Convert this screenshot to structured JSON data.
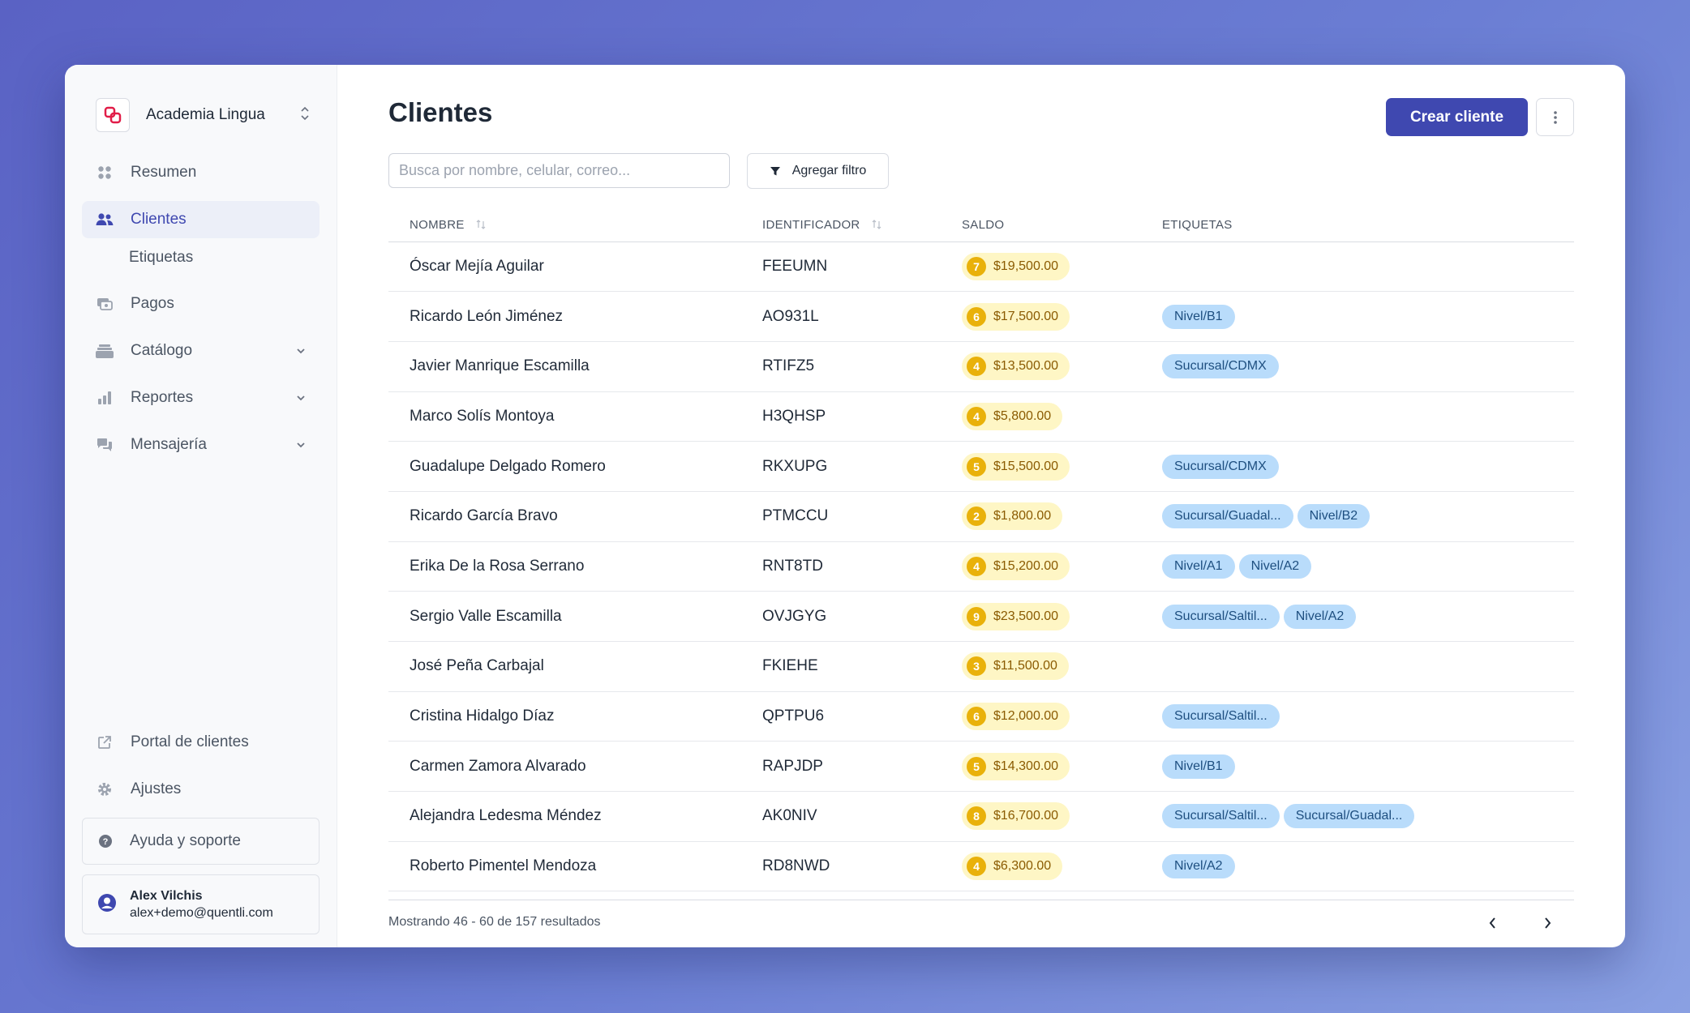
{
  "org": {
    "name": "Academia Lingua"
  },
  "sidebar": {
    "items": [
      {
        "label": "Resumen"
      },
      {
        "label": "Clientes"
      },
      {
        "label": "Etiquetas"
      },
      {
        "label": "Pagos"
      },
      {
        "label": "Catálogo"
      },
      {
        "label": "Reportes"
      },
      {
        "label": "Mensajería"
      }
    ],
    "bottom": [
      {
        "label": "Portal de clientes"
      },
      {
        "label": "Ajustes"
      }
    ],
    "help": "Ayuda y soporte",
    "user": {
      "name": "Alex Vilchis",
      "email": "alex+demo@quentli.com"
    }
  },
  "main": {
    "title": "Clientes",
    "create_button": "Crear cliente",
    "search_placeholder": "Busca por nombre, celular, correo...",
    "filter_button": "Agregar filtro",
    "columns": {
      "nombre": "NOMBRE",
      "identificador": "IDENTIFICADOR",
      "saldo": "SALDO",
      "etiquetas": "ETIQUETAS"
    },
    "rows": [
      {
        "name": "Óscar Mejía Aguilar",
        "id": "FEEUMN",
        "count": "7",
        "saldo": "$19,500.00",
        "tags": []
      },
      {
        "name": "Ricardo León Jiménez",
        "id": "AO931L",
        "count": "6",
        "saldo": "$17,500.00",
        "tags": [
          "Nivel/B1"
        ]
      },
      {
        "name": "Javier Manrique Escamilla",
        "id": "RTIFZ5",
        "count": "4",
        "saldo": "$13,500.00",
        "tags": [
          "Sucursal/CDMX"
        ]
      },
      {
        "name": "Marco Solís Montoya",
        "id": "H3QHSP",
        "count": "4",
        "saldo": "$5,800.00",
        "tags": []
      },
      {
        "name": "Guadalupe Delgado Romero",
        "id": "RKXUPG",
        "count": "5",
        "saldo": "$15,500.00",
        "tags": [
          "Sucursal/CDMX"
        ]
      },
      {
        "name": "Ricardo García Bravo",
        "id": "PTMCCU",
        "count": "2",
        "saldo": "$1,800.00",
        "tags": [
          "Sucursal/Guadal...",
          "Nivel/B2"
        ]
      },
      {
        "name": "Erika De la Rosa Serrano",
        "id": "RNT8TD",
        "count": "4",
        "saldo": "$15,200.00",
        "tags": [
          "Nivel/A1",
          "Nivel/A2"
        ]
      },
      {
        "name": "Sergio Valle Escamilla",
        "id": "OVJGYG",
        "count": "9",
        "saldo": "$23,500.00",
        "tags": [
          "Sucursal/Saltil...",
          "Nivel/A2"
        ]
      },
      {
        "name": "José Peña Carbajal",
        "id": "FKIEHE",
        "count": "3",
        "saldo": "$11,500.00",
        "tags": []
      },
      {
        "name": "Cristina Hidalgo Díaz",
        "id": "QPTPU6",
        "count": "6",
        "saldo": "$12,000.00",
        "tags": [
          "Sucursal/Saltil..."
        ]
      },
      {
        "name": "Carmen Zamora Alvarado",
        "id": "RAPJDP",
        "count": "5",
        "saldo": "$14,300.00",
        "tags": [
          "Nivel/B1"
        ]
      },
      {
        "name": "Alejandra Ledesma Méndez",
        "id": "AK0NIV",
        "count": "8",
        "saldo": "$16,700.00",
        "tags": [
          "Sucursal/Saltil...",
          "Sucursal/Guadal..."
        ]
      },
      {
        "name": "Roberto Pimentel Mendoza",
        "id": "RD8NWD",
        "count": "4",
        "saldo": "$6,300.00",
        "tags": [
          "Nivel/A2"
        ]
      }
    ],
    "footer_text": "Mostrando 46 - 60 de 157 resultados"
  },
  "colors": {
    "accent": "#3f48b0",
    "saldo_bg": "#fef6c5",
    "saldo_badge": "#e9b10a",
    "tag_bg": "#b9dcfb"
  }
}
